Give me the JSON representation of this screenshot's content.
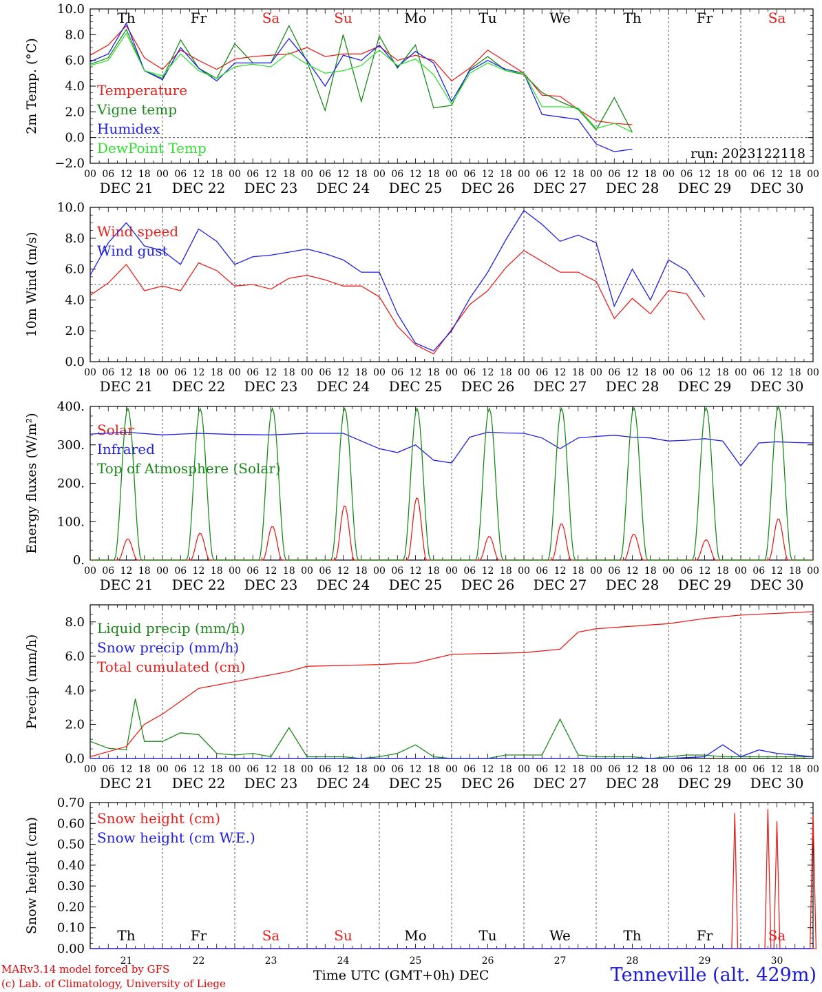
{
  "colors": {
    "red": "#e8201c",
    "blue": "#1e1ee6",
    "darkgreen": "#1a8a1a",
    "lightgreen": "#30e030",
    "sunday": "#e8201c",
    "weekday": "#000000"
  },
  "day_names": [
    "Th",
    "Fr",
    "Sa",
    "Su",
    "Mo",
    "Tu",
    "We",
    "Th",
    "Fr",
    "Sa"
  ],
  "date_labels": [
    "DEC 21",
    "DEC 22",
    "DEC 23",
    "DEC 24",
    "DEC 25",
    "DEC 26",
    "DEC 27",
    "DEC 28",
    "DEC 29",
    "DEC 30"
  ],
  "hour_labels": [
    "00",
    "06",
    "12",
    "18"
  ],
  "bottom_day_numbers": [
    "21",
    "22",
    "23",
    "24",
    "25",
    "26",
    "27",
    "28",
    "29",
    "30"
  ],
  "footer": {
    "model": "MARv3.14 model forced by GFS",
    "copyright": "(c) Lab. of Climatology, University of Liege",
    "time_axis": "Time UTC (GMT+0h) DEC",
    "station": "Tenneville (alt. 429m)"
  },
  "chart_data": [
    {
      "type": "line",
      "ylabel": "2m Temp. (°C)",
      "ylim": [
        -2,
        10
      ],
      "yticks": [
        "10.0",
        "8.0",
        "6.0",
        "4.0",
        "2.0",
        "0.0",
        "−2.0"
      ],
      "annotation": "run: 2023122118",
      "reference_line": 0,
      "x_hours": [
        0,
        6,
        12,
        18,
        24,
        30,
        36,
        42,
        48,
        54,
        60,
        66,
        72,
        78,
        84,
        90,
        96,
        102,
        108,
        114,
        120,
        126,
        132,
        138,
        144,
        150,
        156,
        162,
        168,
        174,
        180,
        186,
        192,
        198,
        204,
        210,
        216,
        222,
        228,
        234,
        240
      ],
      "series": [
        {
          "name": "Temperature",
          "color": "red",
          "values": [
            6.4,
            7.2,
            8.7,
            6.2,
            5.3,
            6.8,
            6.0,
            5.3,
            6.1,
            6.3,
            6.4,
            6.5,
            7.0,
            6.3,
            6.5,
            6.5,
            7.1,
            6.0,
            6.4,
            6.0,
            4.4,
            5.4,
            6.8,
            5.9,
            5.0,
            3.3,
            3.2,
            2.2,
            1.3,
            1.1,
            1.0,
            null,
            null,
            null,
            null,
            null,
            null,
            null,
            null,
            null,
            null
          ]
        },
        {
          "name": "Vigne temp",
          "color": "darkgreen",
          "values": [
            5.7,
            6.2,
            8.4,
            5.2,
            4.6,
            7.6,
            5.4,
            4.6,
            7.3,
            5.8,
            5.8,
            8.7,
            5.9,
            2.1,
            8.0,
            2.8,
            7.9,
            5.4,
            7.2,
            2.3,
            2.5,
            5.3,
            6.3,
            5.2,
            4.9,
            3.5,
            2.8,
            2.2,
            0.6,
            3.1,
            0.4,
            null,
            null,
            null,
            null,
            null,
            null,
            null,
            null,
            null,
            null
          ]
        },
        {
          "name": "Humidex",
          "color": "blue",
          "values": [
            5.9,
            6.5,
            8.9,
            5.2,
            4.5,
            7.0,
            5.4,
            4.4,
            5.8,
            5.8,
            5.8,
            7.7,
            6.0,
            4.0,
            6.4,
            6.0,
            7.2,
            5.5,
            6.7,
            5.8,
            2.8,
            5.2,
            6.0,
            5.3,
            5.0,
            1.8,
            1.6,
            1.4,
            -0.5,
            -1.1,
            -0.9,
            null,
            null,
            null,
            null,
            null,
            null,
            null,
            null,
            null,
            null
          ]
        },
        {
          "name": "DewPoint Temp",
          "color": "lightgreen",
          "values": [
            5.6,
            6.0,
            8.1,
            5.2,
            4.8,
            6.5,
            5.2,
            4.6,
            5.5,
            5.7,
            5.5,
            6.6,
            5.7,
            5.0,
            5.2,
            5.6,
            6.8,
            5.6,
            6.1,
            4.9,
            2.6,
            5.0,
            5.8,
            5.2,
            5.0,
            2.4,
            2.4,
            2.3,
            0.7,
            1.1,
            0.4,
            null,
            null,
            null,
            null,
            null,
            null,
            null,
            null,
            null,
            null
          ]
        }
      ]
    },
    {
      "type": "line",
      "ylabel": "10m Wind (m/s)",
      "ylim": [
        0,
        10
      ],
      "yticks": [
        "10.0",
        "8.0",
        "6.0",
        "4.0",
        "2.0",
        "0.0"
      ],
      "reference_line": 5,
      "x_hours": [
        0,
        6,
        12,
        18,
        24,
        30,
        36,
        42,
        48,
        54,
        60,
        66,
        72,
        78,
        84,
        90,
        96,
        102,
        108,
        114,
        120,
        126,
        132,
        138,
        144,
        150,
        156,
        162,
        168,
        174,
        180,
        186,
        192,
        198,
        204,
        210,
        216,
        222,
        228,
        234,
        240
      ],
      "series": [
        {
          "name": "Wind speed",
          "color": "red",
          "values": [
            4.3,
            5.1,
            6.3,
            4.6,
            4.9,
            4.6,
            6.4,
            5.9,
            4.9,
            5.0,
            4.7,
            5.4,
            5.6,
            5.3,
            4.9,
            4.9,
            4.2,
            2.3,
            1.1,
            0.5,
            2.1,
            3.7,
            4.6,
            6.1,
            7.2,
            6.5,
            5.8,
            5.8,
            5.2,
            2.8,
            4.1,
            3.1,
            4.6,
            4.4,
            2.7,
            null,
            null,
            null,
            null,
            null,
            null
          ]
        },
        {
          "name": "Wind gust",
          "color": "blue",
          "values": [
            5.6,
            7.7,
            9.0,
            7.5,
            7.2,
            6.3,
            8.6,
            7.8,
            6.3,
            6.8,
            6.9,
            7.1,
            7.3,
            7.0,
            6.6,
            5.8,
            5.8,
            3.1,
            1.2,
            0.7,
            2.0,
            4.1,
            5.8,
            7.9,
            9.8,
            8.9,
            7.8,
            8.2,
            7.7,
            3.6,
            6.0,
            4.0,
            6.6,
            5.9,
            4.2,
            null,
            null,
            null,
            null,
            null,
            null
          ]
        }
      ]
    },
    {
      "type": "line",
      "ylabel": "Energy fluxes (W/m²)",
      "ylim": [
        0,
        400
      ],
      "yticks": [
        "400.",
        "300.",
        "200.",
        "100.",
        "0."
      ],
      "series": [
        {
          "name": "Solar",
          "color": "red",
          "day_peaks": [
            55,
            70,
            88,
            142,
            163,
            62,
            95,
            68,
            53,
            108
          ]
        },
        {
          "name": "Infrared",
          "color": "blue",
          "x_hours": [
            0,
            12,
            24,
            36,
            48,
            60,
            72,
            84,
            96,
            102,
            108,
            114,
            120,
            126,
            132,
            138,
            144,
            150,
            156,
            162,
            168,
            174,
            180,
            186,
            192,
            198,
            204,
            210,
            216,
            222,
            228,
            234,
            240
          ],
          "values": [
            328,
            333,
            326,
            330,
            327,
            326,
            330,
            330,
            290,
            280,
            300,
            260,
            253,
            320,
            333,
            331,
            330,
            318,
            290,
            318,
            322,
            325,
            320,
            318,
            310,
            312,
            316,
            310,
            245,
            305,
            308,
            306,
            305
          ]
        },
        {
          "name": "Top of Atmosphere (Solar)",
          "color": "darkgreen",
          "day_peaks": [
            395,
            395,
            395,
            395,
            395,
            395,
            395,
            397,
            397,
            400
          ]
        }
      ]
    },
    {
      "type": "line",
      "ylabel": "Precip (mm/h)",
      "ylim": [
        0,
        9
      ],
      "yticks": [
        "8.0",
        "6.0",
        "4.0",
        "2.0",
        "0.0"
      ],
      "series": [
        {
          "name": "Liquid precip (mm/h)",
          "color": "darkgreen",
          "x_hours": [
            0,
            6,
            12,
            15,
            18,
            24,
            30,
            36,
            42,
            48,
            54,
            60,
            66,
            72,
            78,
            84,
            90,
            96,
            102,
            108,
            114,
            120,
            126,
            132,
            138,
            144,
            150,
            156,
            162,
            168,
            174,
            180,
            186,
            192,
            198,
            204,
            210,
            216,
            222,
            228,
            234,
            240
          ],
          "values": [
            1.0,
            0.6,
            0.5,
            3.5,
            1.0,
            1.0,
            1.5,
            1.4,
            0.3,
            0.2,
            0.3,
            0.1,
            1.8,
            0.1,
            0.1,
            0.1,
            0.0,
            0.1,
            0.3,
            0.8,
            0.1,
            0.0,
            0.0,
            0.0,
            0.2,
            0.2,
            0.2,
            2.3,
            0.2,
            0.1,
            0.1,
            0.1,
            0.0,
            0.1,
            0.2,
            0.2,
            0.1,
            0.1,
            0.1,
            0.1,
            0.1,
            0.1
          ]
        },
        {
          "name": "Snow precip (mm/h)",
          "color": "blue",
          "x_hours": [
            0,
            120,
            156,
            192,
            204,
            210,
            216,
            222,
            228,
            234,
            240
          ],
          "values": [
            0.0,
            0.0,
            0.0,
            0.0,
            0.1,
            0.8,
            0.1,
            0.5,
            0.3,
            0.2,
            0.1
          ]
        },
        {
          "name": "Total cumulated (cm)",
          "color": "red",
          "x_hours": [
            0,
            12,
            18,
            24,
            36,
            48,
            60,
            66,
            72,
            96,
            108,
            120,
            144,
            156,
            162,
            168,
            192,
            204,
            216,
            228,
            240
          ],
          "values": [
            0.1,
            0.7,
            2.0,
            2.6,
            4.1,
            4.5,
            4.9,
            5.1,
            5.4,
            5.5,
            5.6,
            6.1,
            6.2,
            6.4,
            7.4,
            7.6,
            7.9,
            8.2,
            8.4,
            8.5,
            8.6
          ]
        }
      ]
    },
    {
      "type": "line",
      "ylabel": "Snow height (cm)",
      "ylim": [
        0,
        0.7
      ],
      "yticks": [
        "0.70",
        "0.60",
        "0.50",
        "0.40",
        "0.30",
        "0.20",
        "0.10",
        "0.00"
      ],
      "series": [
        {
          "name": "Snow height (cm)",
          "color": "red",
          "spikes": [
            {
              "hour": 214,
              "value": 0.65
            },
            {
              "hour": 225,
              "value": 0.67
            },
            {
              "hour": 228,
              "value": 0.61
            },
            {
              "hour": 240,
              "value": 0.64
            }
          ]
        },
        {
          "name": "Snow height (cm W.E.)",
          "color": "blue",
          "values": [
            0,
            0
          ]
        }
      ]
    }
  ]
}
